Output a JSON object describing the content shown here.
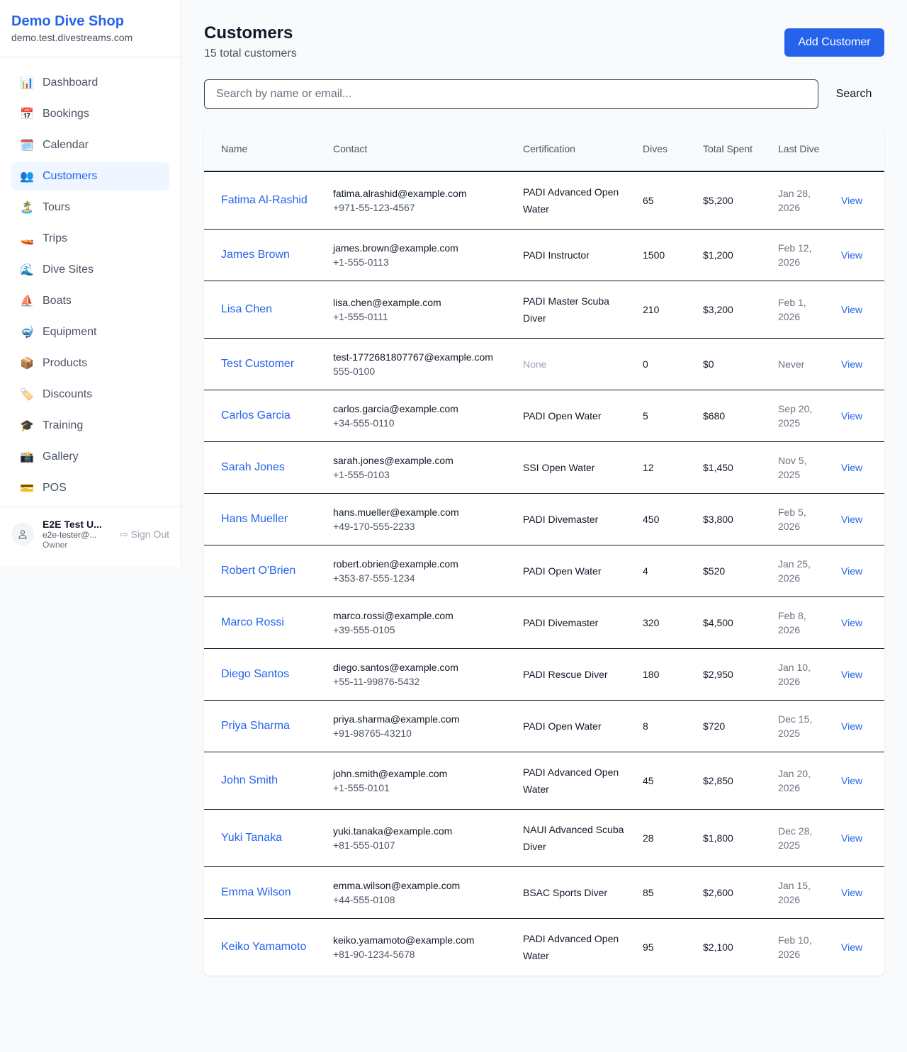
{
  "sidebar": {
    "brand": "Demo Dive Shop",
    "domain": "demo.test.divestreams.com",
    "items": [
      {
        "label": "Dashboard",
        "icon": "📊",
        "active": false
      },
      {
        "label": "Bookings",
        "icon": "📅",
        "active": false
      },
      {
        "label": "Calendar",
        "icon": "🗓️",
        "active": false
      },
      {
        "label": "Customers",
        "icon": "👥",
        "active": true
      },
      {
        "label": "Tours",
        "icon": "🏝️",
        "active": false
      },
      {
        "label": "Trips",
        "icon": "🚤",
        "active": false
      },
      {
        "label": "Dive Sites",
        "icon": "🌊",
        "active": false
      },
      {
        "label": "Boats",
        "icon": "⛵",
        "active": false
      },
      {
        "label": "Equipment",
        "icon": "🤿",
        "active": false
      },
      {
        "label": "Products",
        "icon": "📦",
        "active": false
      },
      {
        "label": "Discounts",
        "icon": "🏷️",
        "active": false
      },
      {
        "label": "Training",
        "icon": "🎓",
        "active": false
      },
      {
        "label": "Gallery",
        "icon": "📸",
        "active": false
      },
      {
        "label": "POS",
        "icon": "💳",
        "active": false
      }
    ],
    "user": {
      "name": "E2E Test U...",
      "email": "e2e-tester@...",
      "role": "Owner",
      "sign_out": "Sign Out"
    }
  },
  "header": {
    "title": "Customers",
    "subtitle": "15 total customers",
    "add_button": "Add Customer"
  },
  "search": {
    "placeholder": "Search by name or email...",
    "button": "Search"
  },
  "table": {
    "columns": [
      "Name",
      "Contact",
      "Certification",
      "Dives",
      "Total Spent",
      "Last Dive"
    ],
    "view_label": "View",
    "rows": [
      {
        "name": "Fatima Al-Rashid",
        "email": "fatima.alrashid@example.com",
        "phone": "+971-55-123-4567",
        "cert": "PADI Advanced Open Water",
        "dives": "65",
        "spent": "$5,200",
        "last": "Jan 28, 2026"
      },
      {
        "name": "James Brown",
        "email": "james.brown@example.com",
        "phone": "+1-555-0113",
        "cert": "PADI Instructor",
        "dives": "1500",
        "spent": "$1,200",
        "last": "Feb 12, 2026"
      },
      {
        "name": "Lisa Chen",
        "email": "lisa.chen@example.com",
        "phone": "+1-555-0111",
        "cert": "PADI Master Scuba Diver",
        "dives": "210",
        "spent": "$3,200",
        "last": "Feb 1, 2026"
      },
      {
        "name": "Test Customer",
        "email": "test-1772681807767@example.com",
        "phone": "555-0100",
        "cert": "None",
        "dives": "0",
        "spent": "$0",
        "last": "Never"
      },
      {
        "name": "Carlos Garcia",
        "email": "carlos.garcia@example.com",
        "phone": "+34-555-0110",
        "cert": "PADI Open Water",
        "dives": "5",
        "spent": "$680",
        "last": "Sep 20, 2025"
      },
      {
        "name": "Sarah Jones",
        "email": "sarah.jones@example.com",
        "phone": "+1-555-0103",
        "cert": "SSI Open Water",
        "dives": "12",
        "spent": "$1,450",
        "last": "Nov 5, 2025"
      },
      {
        "name": "Hans Mueller",
        "email": "hans.mueller@example.com",
        "phone": "+49-170-555-2233",
        "cert": "PADI Divemaster",
        "dives": "450",
        "spent": "$3,800",
        "last": "Feb 5, 2026"
      },
      {
        "name": "Robert O'Brien",
        "email": "robert.obrien@example.com",
        "phone": "+353-87-555-1234",
        "cert": "PADI Open Water",
        "dives": "4",
        "spent": "$520",
        "last": "Jan 25, 2026"
      },
      {
        "name": "Marco Rossi",
        "email": "marco.rossi@example.com",
        "phone": "+39-555-0105",
        "cert": "PADI Divemaster",
        "dives": "320",
        "spent": "$4,500",
        "last": "Feb 8, 2026"
      },
      {
        "name": "Diego Santos",
        "email": "diego.santos@example.com",
        "phone": "+55-11-99876-5432",
        "cert": "PADI Rescue Diver",
        "dives": "180",
        "spent": "$2,950",
        "last": "Jan 10, 2026"
      },
      {
        "name": "Priya Sharma",
        "email": "priya.sharma@example.com",
        "phone": "+91-98765-43210",
        "cert": "PADI Open Water",
        "dives": "8",
        "spent": "$720",
        "last": "Dec 15, 2025"
      },
      {
        "name": "John Smith",
        "email": "john.smith@example.com",
        "phone": "+1-555-0101",
        "cert": "PADI Advanced Open Water",
        "dives": "45",
        "spent": "$2,850",
        "last": "Jan 20, 2026"
      },
      {
        "name": "Yuki Tanaka",
        "email": "yuki.tanaka@example.com",
        "phone": "+81-555-0107",
        "cert": "NAUI Advanced Scuba Diver",
        "dives": "28",
        "spent": "$1,800",
        "last": "Dec 28, 2025"
      },
      {
        "name": "Emma Wilson",
        "email": "emma.wilson@example.com",
        "phone": "+44-555-0108",
        "cert": "BSAC Sports Diver",
        "dives": "85",
        "spent": "$2,600",
        "last": "Jan 15, 2026"
      },
      {
        "name": "Keiko Yamamoto",
        "email": "keiko.yamamoto@example.com",
        "phone": "+81-90-1234-5678",
        "cert": "PADI Advanced Open Water",
        "dives": "95",
        "spent": "$2,100",
        "last": "Feb 10, 2026"
      }
    ]
  }
}
